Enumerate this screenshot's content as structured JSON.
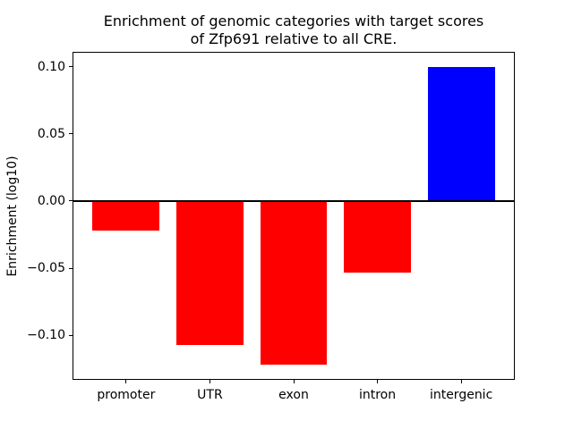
{
  "chart_data": {
    "type": "bar",
    "title": "Enrichment of genomic categories with target scores\nof Zfp691 relative to all CRE.",
    "xlabel": "",
    "ylabel": "Enrichment (log10)",
    "categories": [
      "promoter",
      "UTR",
      "exon",
      "intron",
      "intergenic"
    ],
    "values": [
      -0.022,
      -0.107,
      -0.122,
      -0.053,
      0.1
    ],
    "bar_colors": [
      "#ff0000",
      "#ff0000",
      "#ff0000",
      "#ff0000",
      "#0000ff"
    ],
    "negative_color": "#ff0000",
    "positive_color": "#0000ff",
    "bar_width": 0.8,
    "xlim": [
      -0.64,
      4.64
    ],
    "ylim": [
      -0.1331,
      0.1111
    ],
    "yticks": [
      0.1,
      0.05,
      0.0,
      -0.05,
      -0.1
    ],
    "ytick_labels": [
      "0.10",
      "0.05",
      "0.00",
      "−0.05",
      "−0.10"
    ],
    "zero_line": {
      "color": "#000000",
      "width": 2.5
    },
    "grid": false,
    "legend": null,
    "background": "#ffffff",
    "spine_color": "#000000",
    "text_color": "#000000"
  }
}
